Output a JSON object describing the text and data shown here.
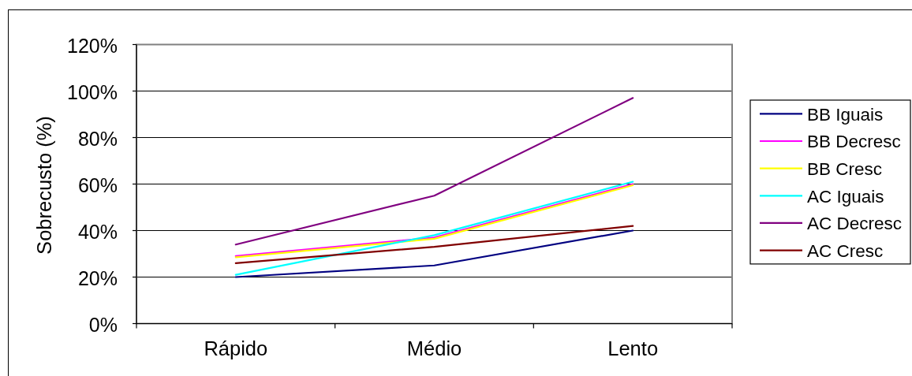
{
  "chart_data": {
    "type": "line",
    "ylabel": "Sobrecusto (%)",
    "categories": [
      "Rápido",
      "Médio",
      "Lento"
    ],
    "series": [
      {
        "name": "BB Iguais",
        "color": "#000080",
        "values": [
          20,
          25,
          40
        ]
      },
      {
        "name": "BB Decresc",
        "color": "#ff00ff",
        "values": [
          29,
          37,
          60
        ]
      },
      {
        "name": "BB Cresc",
        "color": "#ffff00",
        "values": [
          28.5,
          36.5,
          59.5
        ]
      },
      {
        "name": "AC Iguais",
        "color": "#00ffff",
        "values": [
          21,
          38,
          61
        ]
      },
      {
        "name": "AC Decresc",
        "color": "#800080",
        "values": [
          34,
          55,
          97
        ]
      },
      {
        "name": "AC Cresc",
        "color": "#800000",
        "values": [
          26,
          33,
          42
        ]
      }
    ],
    "ylim": [
      0,
      120
    ],
    "yticks": [
      {
        "value": 0,
        "label": "0%"
      },
      {
        "value": 20,
        "label": "20%"
      },
      {
        "value": 40,
        "label": "40%"
      },
      {
        "value": 60,
        "label": "60%"
      },
      {
        "value": 80,
        "label": "80%"
      },
      {
        "value": 100,
        "label": "100%"
      },
      {
        "value": 120,
        "label": "120%"
      }
    ],
    "grid": "y",
    "legend": "right"
  }
}
